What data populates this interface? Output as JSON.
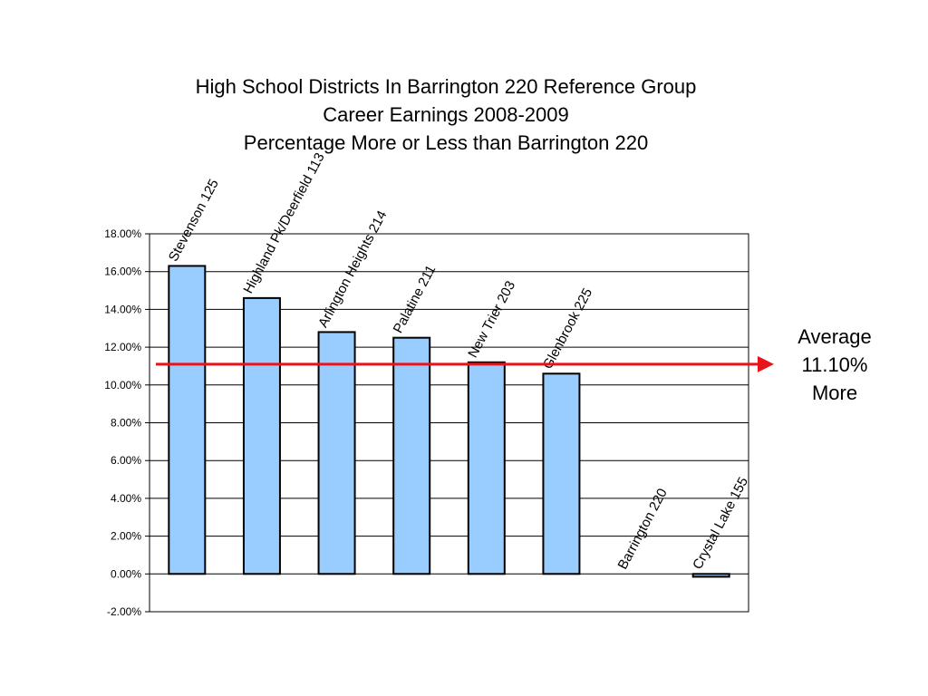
{
  "title_lines": [
    "High School Districts In Barrington 220 Reference Group",
    "Career Earnings 2008-2009",
    "Percentage More or Less than Barrington 220"
  ],
  "average_label": [
    "Average",
    "11.10%",
    "More"
  ],
  "colors": {
    "bar_fill": "#99CCFF",
    "bar_stroke": "#000000",
    "average_line": "#E8141C",
    "grid": "#000000"
  },
  "chart_data": {
    "type": "bar",
    "categories": [
      "Stevenson 125",
      "Highland Pk/Deerfield 113",
      "Arlington Heights 214",
      "Palatine 211",
      "New Trier 203",
      "Glenbrook 225",
      "Barrington 220",
      "Crystal Lake 155"
    ],
    "values": [
      16.3,
      14.6,
      12.8,
      12.5,
      11.2,
      10.6,
      0.0,
      -0.15
    ],
    "ylim": [
      -2,
      18
    ],
    "yticks": [
      18,
      16,
      14,
      12,
      10,
      8,
      6,
      4,
      2,
      0,
      -2
    ],
    "ytick_labels": [
      "18.00%",
      "16.00%",
      "14.00%",
      "12.00%",
      "10.00%",
      "8.00%",
      "6.00%",
      "4.00%",
      "2.00%",
      "0.00%",
      "-2.00%"
    ],
    "average": 11.1,
    "grid": true,
    "legend": "none"
  }
}
